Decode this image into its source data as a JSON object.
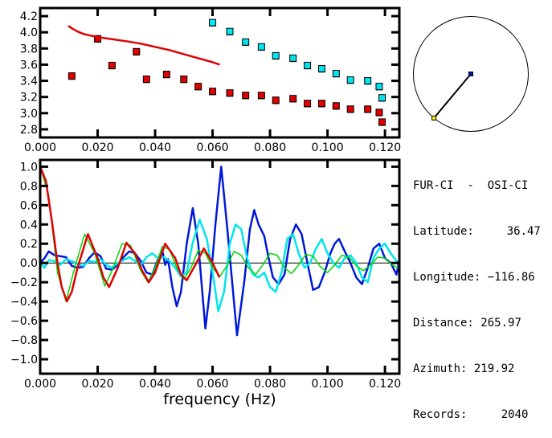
{
  "chart_data": [
    {
      "id": "velocity",
      "type": "scatter",
      "title": "",
      "xlabel": "",
      "ylabel": "",
      "xlim": [
        0.0,
        0.125
      ],
      "ylim": [
        2.7,
        4.3
      ],
      "xticks": [
        0.0,
        0.02,
        0.04,
        0.06,
        0.08,
        0.1,
        0.12
      ],
      "xtick_labels": [
        "0.000",
        "0.020",
        "0.040",
        "0.060",
        "0.080",
        "0.100",
        "0.120"
      ],
      "yticks": [
        2.8,
        3.0,
        3.2,
        3.4,
        3.6,
        3.8,
        4.0,
        4.2
      ],
      "ytick_labels": [
        "2.8",
        "3.0",
        "3.2",
        "3.4",
        "3.6",
        "3.8",
        "4.0",
        "4.2"
      ],
      "grid": false,
      "series": [
        {
          "name": "cyan-points",
          "type": "scatter",
          "color": "#00e5ee",
          "x": [
            0.06,
            0.066,
            0.0715,
            0.077,
            0.082,
            0.088,
            0.093,
            0.098,
            0.103,
            0.108,
            0.114,
            0.118,
            0.119
          ],
          "y": [
            4.12,
            4.01,
            3.88,
            3.82,
            3.71,
            3.68,
            3.59,
            3.55,
            3.49,
            3.41,
            3.4,
            3.33,
            3.19
          ]
        },
        {
          "name": "red-points",
          "type": "scatter",
          "color": "#e00000",
          "x": [
            0.011,
            0.02,
            0.025,
            0.0335,
            0.037,
            0.044,
            0.05,
            0.055,
            0.06,
            0.066,
            0.0715,
            0.077,
            0.082,
            0.088,
            0.093,
            0.098,
            0.103,
            0.108,
            0.114,
            0.118,
            0.119
          ],
          "y": [
            3.46,
            3.92,
            3.59,
            3.76,
            3.42,
            3.48,
            3.42,
            3.33,
            3.27,
            3.25,
            3.22,
            3.22,
            3.16,
            3.18,
            3.12,
            3.12,
            3.09,
            3.05,
            3.05,
            3.01,
            2.89
          ]
        },
        {
          "name": "red-curve",
          "type": "line",
          "color": "#e00000",
          "x": [
            0.0098,
            0.011,
            0.013,
            0.015,
            0.018,
            0.02,
            0.025,
            0.03,
            0.035,
            0.04,
            0.045,
            0.05,
            0.055,
            0.06,
            0.0625
          ],
          "y": [
            4.08,
            4.05,
            4.01,
            3.98,
            3.955,
            3.94,
            3.915,
            3.89,
            3.86,
            3.82,
            3.78,
            3.73,
            3.68,
            3.63,
            3.6
          ]
        }
      ]
    },
    {
      "id": "correlation",
      "type": "line",
      "title": "",
      "xlabel": "frequency (Hz)",
      "ylabel": "",
      "xlim": [
        0.0,
        0.125
      ],
      "ylim": [
        -1.15,
        1.07
      ],
      "xticks": [
        0.0,
        0.02,
        0.04,
        0.06,
        0.08,
        0.1,
        0.12
      ],
      "xtick_labels": [
        "0.000",
        "0.020",
        "0.040",
        "0.060",
        "0.080",
        "0.100",
        "0.120"
      ],
      "yticks": [
        -1.0,
        -0.8,
        -0.6,
        -0.4,
        -0.2,
        0.0,
        0.2,
        0.4,
        0.6,
        0.8,
        1.0
      ],
      "ytick_labels": [
        "−1.0",
        "−0.8",
        "−0.6",
        "−0.4",
        "−0.2",
        "0.0",
        "0.2",
        "0.4",
        "0.6",
        "0.8",
        "1.0"
      ],
      "grid": false,
      "zero_line": true,
      "series": [
        {
          "name": "blue-data",
          "color": "#0018d8",
          "x": [
            0.0,
            0.0015,
            0.003,
            0.005,
            0.007,
            0.009,
            0.011,
            0.013,
            0.015,
            0.017,
            0.019,
            0.021,
            0.023,
            0.025,
            0.027,
            0.029,
            0.031,
            0.033,
            0.035,
            0.037,
            0.039,
            0.041,
            0.0425,
            0.0435,
            0.0445,
            0.046,
            0.0475,
            0.049,
            0.051,
            0.0531,
            0.055,
            0.0575,
            0.059,
            0.061,
            0.063,
            0.065,
            0.0685,
            0.071,
            0.073,
            0.0745,
            0.076,
            0.078,
            0.0795,
            0.081,
            0.083,
            0.085,
            0.087,
            0.089,
            0.091,
            0.093,
            0.095,
            0.097,
            0.099,
            0.101,
            0.1025,
            0.104,
            0.106,
            0.108,
            0.11,
            0.112,
            0.114,
            0.116,
            0.118,
            0.12,
            0.122,
            0.124,
            0.125
          ],
          "y": [
            0.0,
            0.05,
            0.12,
            0.08,
            0.07,
            0.06,
            -0.03,
            -0.05,
            -0.04,
            0.05,
            0.11,
            0.07,
            -0.06,
            -0.07,
            -0.02,
            0.06,
            0.12,
            0.1,
            0.02,
            -0.1,
            -0.12,
            0.04,
            0.13,
            -0.02,
            0.04,
            -0.25,
            -0.45,
            -0.3,
            0.2,
            0.57,
            0.2,
            -0.68,
            -0.3,
            0.4,
            1.0,
            0.4,
            -0.75,
            -0.2,
            0.35,
            0.55,
            0.4,
            0.28,
            0.05,
            -0.15,
            -0.22,
            -0.12,
            0.25,
            0.4,
            0.3,
            0.0,
            -0.28,
            -0.25,
            -0.1,
            0.1,
            0.2,
            0.25,
            0.12,
            0.0,
            -0.15,
            -0.22,
            -0.05,
            0.15,
            0.2,
            0.05,
            0.0,
            -0.12,
            0.03
          ]
        },
        {
          "name": "cyan-data",
          "color": "#00e5ee",
          "x": [
            0.0,
            0.0015,
            0.003,
            0.005,
            0.007,
            0.009,
            0.011,
            0.013,
            0.015,
            0.017,
            0.019,
            0.021,
            0.023,
            0.025,
            0.027,
            0.029,
            0.031,
            0.033,
            0.035,
            0.037,
            0.039,
            0.041,
            0.043,
            0.045,
            0.047,
            0.049,
            0.051,
            0.053,
            0.0555,
            0.058,
            0.06,
            0.062,
            0.064,
            0.066,
            0.068,
            0.07,
            0.072,
            0.074,
            0.076,
            0.078,
            0.08,
            0.082,
            0.084,
            0.086,
            0.088,
            0.09,
            0.092,
            0.094,
            0.096,
            0.098,
            0.1,
            0.102,
            0.104,
            0.106,
            0.108,
            0.11,
            0.112,
            0.114,
            0.116,
            0.118,
            0.12,
            0.122,
            0.124,
            0.125
          ],
          "y": [
            0.0,
            -0.05,
            0.03,
            0.02,
            -0.02,
            0.04,
            0.02,
            -0.01,
            -0.03,
            0.02,
            0.01,
            0.04,
            -0.02,
            -0.05,
            0.0,
            0.03,
            0.06,
            0.02,
            -0.02,
            0.06,
            0.1,
            0.05,
            0.06,
            0.02,
            -0.05,
            -0.14,
            -0.1,
            0.2,
            0.45,
            0.25,
            -0.1,
            -0.5,
            -0.3,
            0.2,
            0.4,
            0.35,
            0.05,
            -0.12,
            -0.15,
            -0.1,
            -0.25,
            -0.3,
            -0.1,
            0.25,
            0.3,
            0.1,
            -0.05,
            0.0,
            0.15,
            0.25,
            0.1,
            0.0,
            -0.05,
            0.05,
            0.08,
            0.0,
            -0.15,
            -0.2,
            0.05,
            0.15,
            0.2,
            0.1,
            0.02,
            0.0
          ]
        },
        {
          "name": "green-model",
          "color": "#00d800",
          "x": [
            0.0,
            0.003,
            0.006,
            0.009,
            0.012,
            0.0155,
            0.019,
            0.0225,
            0.025,
            0.0285,
            0.0315,
            0.035,
            0.0375,
            0.04,
            0.0425,
            0.045,
            0.0475,
            0.05,
            0.0525,
            0.055,
            0.0575,
            0.06,
            0.0625,
            0.065,
            0.0675,
            0.07,
            0.0725,
            0.075,
            0.0775,
            0.08,
            0.0825,
            0.085,
            0.0875,
            0.09,
            0.0925,
            0.095,
            0.0975,
            0.1,
            0.1025,
            0.105,
            0.1075,
            0.11,
            0.1125,
            0.115,
            0.1175,
            0.12,
            0.1225,
            0.125
          ],
          "y": [
            1.0,
            0.7,
            -0.1,
            -0.4,
            -0.05,
            0.3,
            0.1,
            -0.24,
            -0.08,
            0.2,
            0.18,
            -0.08,
            -0.2,
            -0.05,
            0.17,
            0.14,
            -0.05,
            -0.17,
            -0.05,
            0.13,
            0.1,
            -0.05,
            -0.14,
            -0.03,
            0.12,
            0.08,
            -0.05,
            -0.12,
            -0.02,
            0.1,
            0.08,
            -0.05,
            -0.11,
            -0.02,
            0.09,
            0.07,
            -0.04,
            -0.1,
            -0.02,
            0.08,
            0.06,
            -0.03,
            -0.08,
            -0.02,
            0.06,
            0.05,
            -0.02,
            -0.06
          ]
        },
        {
          "name": "red-model",
          "color": "#e00000",
          "x": [
            0.0,
            0.002,
            0.004,
            0.006,
            0.0075,
            0.0093,
            0.011,
            0.013,
            0.0166,
            0.02,
            0.022,
            0.024,
            0.027,
            0.03,
            0.033,
            0.0355,
            0.0378,
            0.04,
            0.0435,
            0.047,
            0.049,
            0.051,
            0.054,
            0.057,
            0.06,
            0.0624
          ],
          "y": [
            1.0,
            0.85,
            0.45,
            0.0,
            -0.25,
            -0.4,
            -0.3,
            -0.05,
            0.3,
            0.05,
            -0.15,
            -0.25,
            -0.05,
            0.21,
            0.1,
            -0.08,
            -0.2,
            -0.1,
            0.2,
            0.05,
            -0.12,
            -0.18,
            -0.02,
            0.15,
            0.0,
            -0.15
          ]
        }
      ]
    }
  ],
  "map": {
    "station_a_color": "#ffee00",
    "station_b_color": "#0010b0",
    "azimuth_deg": 219.92
  },
  "info": {
    "pair": "FUR-CI  -  OSI-CI",
    "latitude_label": "Latitude:",
    "latitude_value": "36.47",
    "longitude_label": "Longitude:",
    "longitude_value": "−116.86",
    "distance_label": "Distance:",
    "distance_value": "265.97",
    "azimuth_label": "Azimuth:",
    "azimuth_value": "219.92",
    "records_label": "Records:",
    "records_value": "2040"
  }
}
